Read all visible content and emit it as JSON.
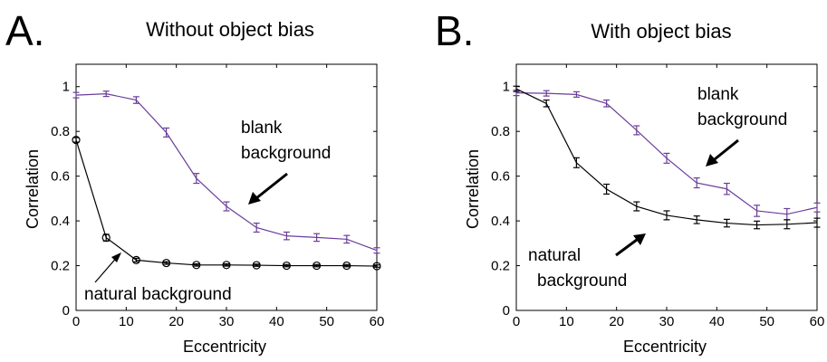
{
  "chart_data": [
    {
      "panel_letter": "A.",
      "title": "Without object bias",
      "type": "line",
      "xlabel": "Eccentricity",
      "ylabel": "Correlation",
      "xlim": [
        0,
        60
      ],
      "ylim": [
        0,
        1.1
      ],
      "xticks": [
        "0",
        "10",
        "20",
        "30",
        "40",
        "50",
        "60"
      ],
      "yticks": [
        "0",
        "0.2",
        "0.4",
        "0.6",
        "0.8",
        "1"
      ],
      "grid": false,
      "series": [
        {
          "color": "#6a3d9a",
          "marker": "errorbar",
          "x": [
            0,
            6,
            12,
            18,
            24,
            30,
            36,
            42,
            48,
            54,
            60
          ],
          "y": [
            0.962,
            0.968,
            0.94,
            0.795,
            0.59,
            0.465,
            0.37,
            0.333,
            0.326,
            0.318,
            0.268
          ],
          "err": [
            0.012,
            0.012,
            0.015,
            0.02,
            0.022,
            0.02,
            0.02,
            0.017,
            0.017,
            0.017,
            0.012
          ]
        },
        {
          "color": "#000000",
          "marker": "circle",
          "x": [
            0,
            6,
            12,
            18,
            24,
            30,
            36,
            42,
            48,
            54,
            60
          ],
          "y": [
            0.762,
            0.325,
            0.225,
            0.212,
            0.203,
            0.203,
            0.202,
            0.2,
            0.2,
            0.2,
            0.198
          ],
          "err": [
            0.01,
            0.015,
            0.008,
            0.006,
            0.005,
            0.005,
            0.005,
            0.005,
            0.005,
            0.005,
            0.005
          ]
        }
      ],
      "annotations": [
        {
          "lines": [
            "blank",
            "background"
          ]
        },
        {
          "lines": [
            "natural background"
          ]
        }
      ]
    },
    {
      "panel_letter": "B.",
      "title": "With object bias",
      "type": "line",
      "xlabel": "Eccentricity",
      "ylabel": "Correlation",
      "xlim": [
        0,
        60
      ],
      "ylim": [
        0,
        1.1
      ],
      "xticks": [
        "0",
        "10",
        "20",
        "30",
        "40",
        "50",
        "60"
      ],
      "yticks": [
        "0",
        "0.2",
        "0.4",
        "0.6",
        "0.8",
        "1"
      ],
      "grid": false,
      "series": [
        {
          "color": "#6a3d9a",
          "marker": "errorbar",
          "x": [
            0,
            6,
            12,
            18,
            24,
            30,
            36,
            42,
            48,
            54,
            60
          ],
          "y": [
            0.972,
            0.97,
            0.965,
            0.925,
            0.805,
            0.68,
            0.57,
            0.543,
            0.445,
            0.43,
            0.46
          ],
          "err": [
            0.012,
            0.012,
            0.012,
            0.015,
            0.02,
            0.022,
            0.022,
            0.025,
            0.025,
            0.025,
            0.02
          ]
        },
        {
          "color": "#000000",
          "marker": "errorbar",
          "x": [
            0,
            6,
            12,
            18,
            24,
            30,
            36,
            42,
            48,
            54,
            60
          ],
          "y": [
            0.99,
            0.925,
            0.66,
            0.542,
            0.465,
            0.425,
            0.405,
            0.39,
            0.382,
            0.385,
            0.392
          ],
          "err": [
            0.012,
            0.015,
            0.022,
            0.022,
            0.02,
            0.02,
            0.017,
            0.017,
            0.017,
            0.02,
            0.02
          ]
        }
      ],
      "annotations": [
        {
          "lines": [
            "blank",
            "background"
          ]
        },
        {
          "lines": [
            "natural",
            "background"
          ]
        }
      ]
    }
  ]
}
